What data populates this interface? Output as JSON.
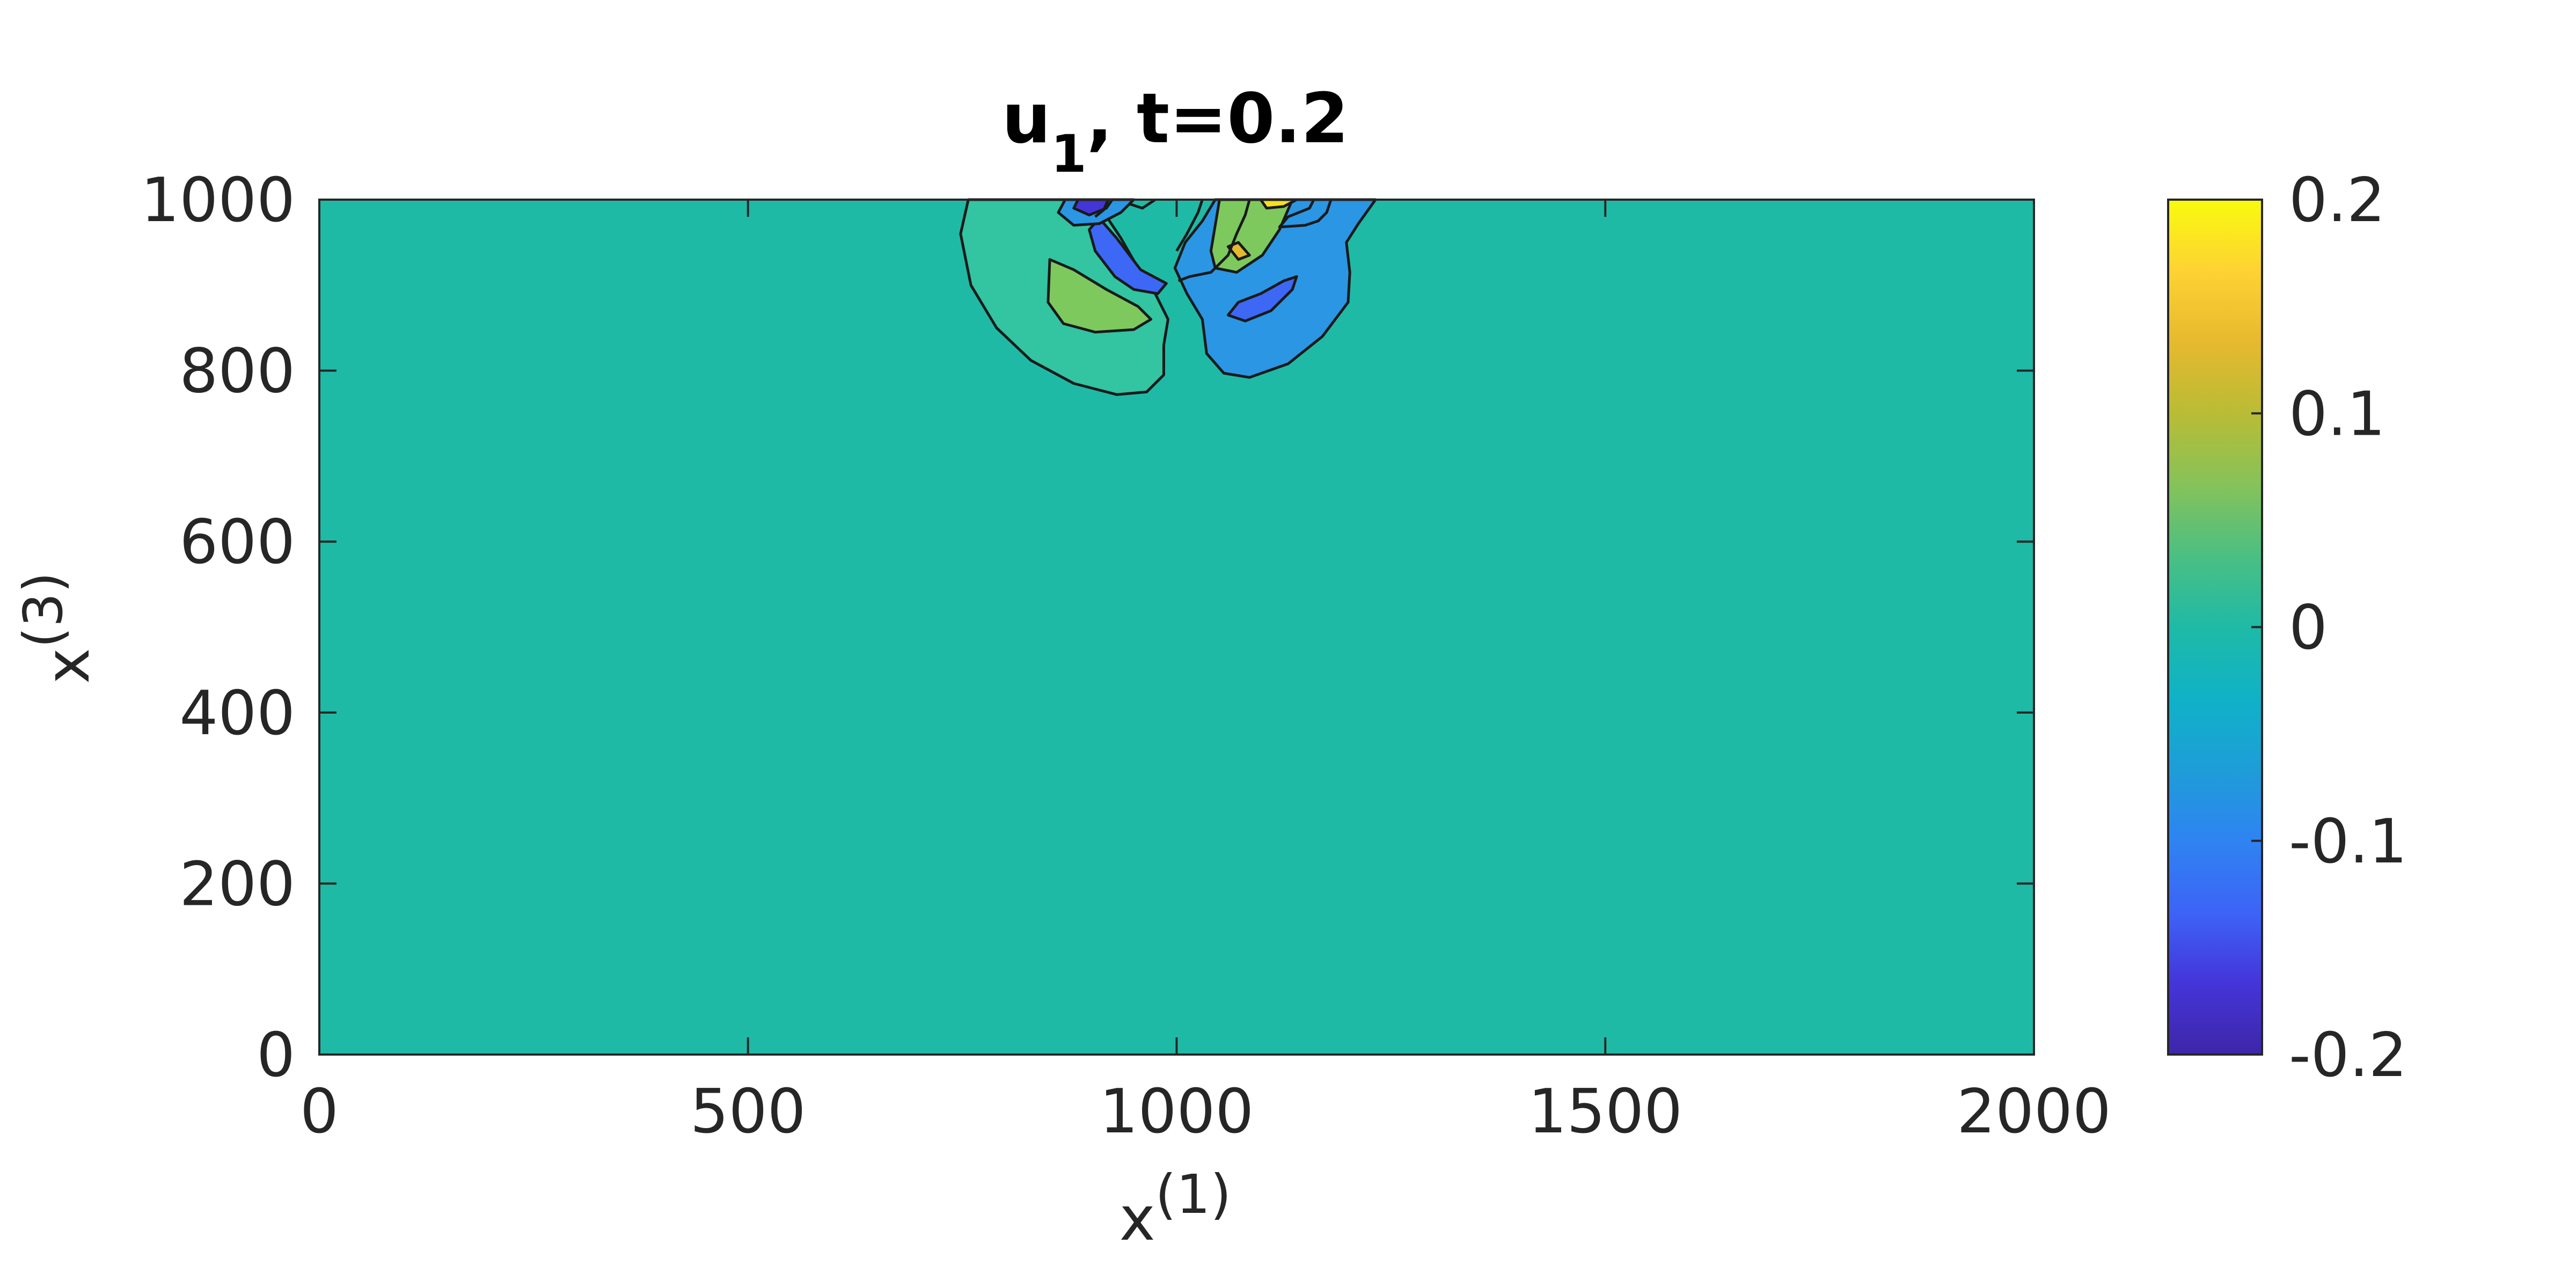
{
  "chart_data": {
    "type": "contour",
    "title": {
      "main": "u",
      "subscript": "1",
      "rest": ", t=0.2"
    },
    "xlabel": {
      "main": "x",
      "superscript": "(1)"
    },
    "ylabel": {
      "main": "x",
      "superscript": "(3)"
    },
    "xlim": [
      0,
      2000
    ],
    "ylim": [
      0,
      1000
    ],
    "x_ticks": [
      0,
      500,
      1000,
      1500,
      2000
    ],
    "y_ticks": [
      0,
      200,
      400,
      600,
      800,
      1000
    ],
    "x_tick_labels": [
      "0",
      "500",
      "1000",
      "1500",
      "2000"
    ],
    "y_tick_labels": [
      "0",
      "200",
      "400",
      "600",
      "800",
      "1000"
    ],
    "background_value": 0,
    "colorbar": {
      "range": [
        -0.2,
        0.2
      ],
      "ticks": [
        -0.2,
        -0.1,
        0,
        0.1,
        0.2
      ],
      "tick_labels": [
        "-0.2",
        "-0.1",
        "0",
        "0.1",
        "0.2"
      ],
      "colormap": [
        "#3e26a8",
        "#4435d9",
        "#3d64f6",
        "#2f83f2",
        "#1e9dd8",
        "#0fb2c7",
        "#1fbaa6",
        "#4bbf83",
        "#86c25a",
        "#b9bc35",
        "#e6b92f",
        "#fed233",
        "#f9fb0e"
      ]
    },
    "contour_regions": [
      {
        "value": 0.02,
        "fill": "#33c4a1",
        "points": [
          [
            757,
            1000
          ],
          [
            748,
            960
          ],
          [
            760,
            900
          ],
          [
            790,
            850
          ],
          [
            830,
            812
          ],
          [
            880,
            785
          ],
          [
            930,
            772
          ],
          [
            965,
            775
          ],
          [
            985,
            795
          ],
          [
            985,
            830
          ],
          [
            990,
            860
          ],
          [
            975,
            890
          ],
          [
            955,
            920
          ],
          [
            935,
            955
          ],
          [
            915,
            985
          ],
          [
            905,
            1000
          ]
        ]
      },
      {
        "value": -0.04,
        "fill": "#2b96e4",
        "points": [
          [
            1232,
            1000
          ],
          [
            1212,
            972
          ],
          [
            1198,
            950
          ],
          [
            1202,
            915
          ],
          [
            1200,
            880
          ],
          [
            1170,
            840
          ],
          [
            1130,
            808
          ],
          [
            1085,
            792
          ],
          [
            1055,
            797
          ],
          [
            1035,
            820
          ],
          [
            1030,
            860
          ],
          [
            1012,
            890
          ],
          [
            998,
            920
          ],
          [
            1010,
            950
          ],
          [
            1030,
            975
          ],
          [
            1045,
            1000
          ]
        ]
      },
      {
        "value": 0.06,
        "fill": "#7dc95e",
        "points": [
          [
            852,
            930
          ],
          [
            880,
            918
          ],
          [
            918,
            895
          ],
          [
            955,
            875
          ],
          [
            970,
            860
          ],
          [
            950,
            848
          ],
          [
            905,
            845
          ],
          [
            868,
            855
          ],
          [
            850,
            880
          ]
        ]
      },
      {
        "value": -0.1,
        "fill": "#3d67f5",
        "points": [
          [
            910,
            978
          ],
          [
            930,
            955
          ],
          [
            958,
            918
          ],
          [
            988,
            902
          ],
          [
            978,
            890
          ],
          [
            950,
            895
          ],
          [
            928,
            910
          ],
          [
            905,
            940
          ],
          [
            898,
            965
          ]
        ]
      },
      {
        "value": -0.04,
        "fill": "#2b96e4",
        "points": [
          [
            870,
            1000
          ],
          [
            862,
            985
          ],
          [
            880,
            970
          ],
          [
            910,
            972
          ],
          [
            935,
            985
          ],
          [
            950,
            1000
          ]
        ]
      },
      {
        "value": 0.06,
        "fill": "#7dc95e",
        "points": [
          [
            1050,
            1000
          ],
          [
            1045,
            970
          ],
          [
            1040,
            940
          ],
          [
            1045,
            920
          ],
          [
            1070,
            915
          ],
          [
            1100,
            935
          ],
          [
            1120,
            965
          ],
          [
            1135,
            1000
          ]
        ]
      },
      {
        "value": -0.1,
        "fill": "#3d67f5",
        "points": [
          [
            1060,
            865
          ],
          [
            1080,
            858
          ],
          [
            1110,
            870
          ],
          [
            1135,
            895
          ],
          [
            1140,
            910
          ],
          [
            1125,
            905
          ],
          [
            1098,
            890
          ],
          [
            1072,
            880
          ]
        ]
      },
      {
        "value": -0.18,
        "fill": "#4236d6",
        "points": [
          [
            885,
            1000
          ],
          [
            880,
            990
          ],
          [
            898,
            982
          ],
          [
            918,
            990
          ],
          [
            925,
            1000
          ]
        ]
      },
      {
        "value": 0.14,
        "fill": "#e3b931",
        "points": [
          [
            1060,
            945
          ],
          [
            1072,
            930
          ],
          [
            1085,
            935
          ],
          [
            1072,
            950
          ]
        ]
      },
      {
        "value": 0.18,
        "fill": "#f5e020",
        "points": [
          [
            1098,
            1000
          ],
          [
            1105,
            990
          ],
          [
            1125,
            992
          ],
          [
            1140,
            1000
          ]
        ]
      }
    ],
    "contour_lines": [
      [
        [
          975,
          1000
        ],
        [
          960,
          990
        ],
        [
          945,
          995
        ]
      ],
      [
        [
          1180,
          1000
        ],
        [
          1175,
          985
        ],
        [
          1165,
          975
        ],
        [
          1150,
          970
        ],
        [
          1120,
          968
        ],
        [
          1130,
          980
        ],
        [
          1155,
          990
        ],
        [
          1160,
          1000
        ]
      ],
      [
        [
          1085,
          1000
        ],
        [
          1080,
          982
        ],
        [
          1070,
          960
        ],
        [
          1060,
          935
        ],
        [
          1040,
          915
        ],
        [
          1015,
          910
        ],
        [
          1002,
          905
        ]
      ],
      [
        [
          920,
          1000
        ],
        [
          915,
          988
        ],
        [
          905,
          980
        ]
      ],
      [
        [
          1030,
          1000
        ],
        [
          1025,
          985
        ],
        [
          1012,
          960
        ],
        [
          1000,
          940
        ]
      ]
    ]
  }
}
